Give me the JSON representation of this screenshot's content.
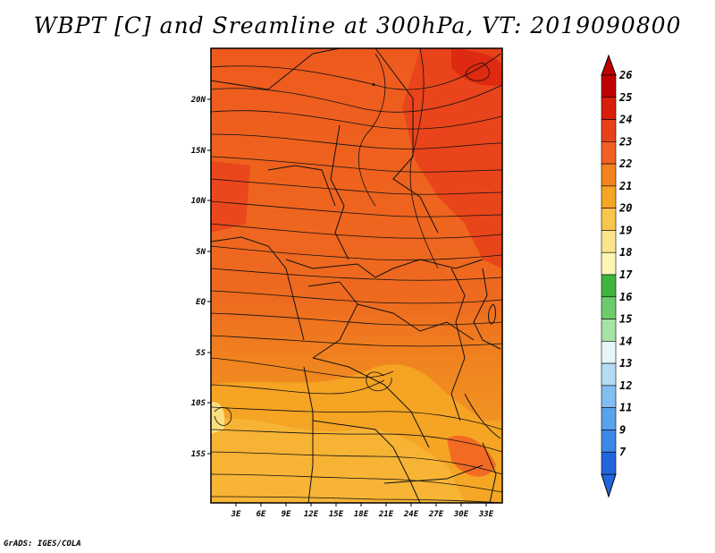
{
  "title": "WBPT [C] and Sreamline at 300hPa, VT: 2019090800",
  "credit": "GrADS: IGES/COLA",
  "map": {
    "lon_range": [
      0,
      35
    ],
    "lat_range": [
      -20,
      25
    ],
    "lon_ticks": [
      "3E",
      "6E",
      "9E",
      "12E",
      "15E",
      "18E",
      "21E",
      "24E",
      "27E",
      "30E",
      "33E"
    ],
    "lat_ticks": [
      "20N",
      "15N",
      "10N",
      "5N",
      "EQ",
      "5S",
      "10S",
      "15S"
    ],
    "field": "wet-bulb potential temperature",
    "units": "C"
  },
  "colorbar": {
    "labels": [
      "26",
      "25",
      "24",
      "23",
      "22",
      "21",
      "20",
      "19",
      "18",
      "17",
      "16",
      "15",
      "14",
      "13",
      "12",
      "11",
      "9",
      "7"
    ],
    "colors": [
      "#c00000",
      "#d91f0c",
      "#e8401b",
      "#f26022",
      "#f5821f",
      "#f5a623",
      "#f7c64f",
      "#fbe489",
      "#fdf6b2",
      "#3fb43f",
      "#6ccc6c",
      "#a6e3a6",
      "#e6f6f6",
      "#b4dcf4",
      "#82bef0",
      "#57a3ec",
      "#3c88e6",
      "#2266dd"
    ]
  }
}
